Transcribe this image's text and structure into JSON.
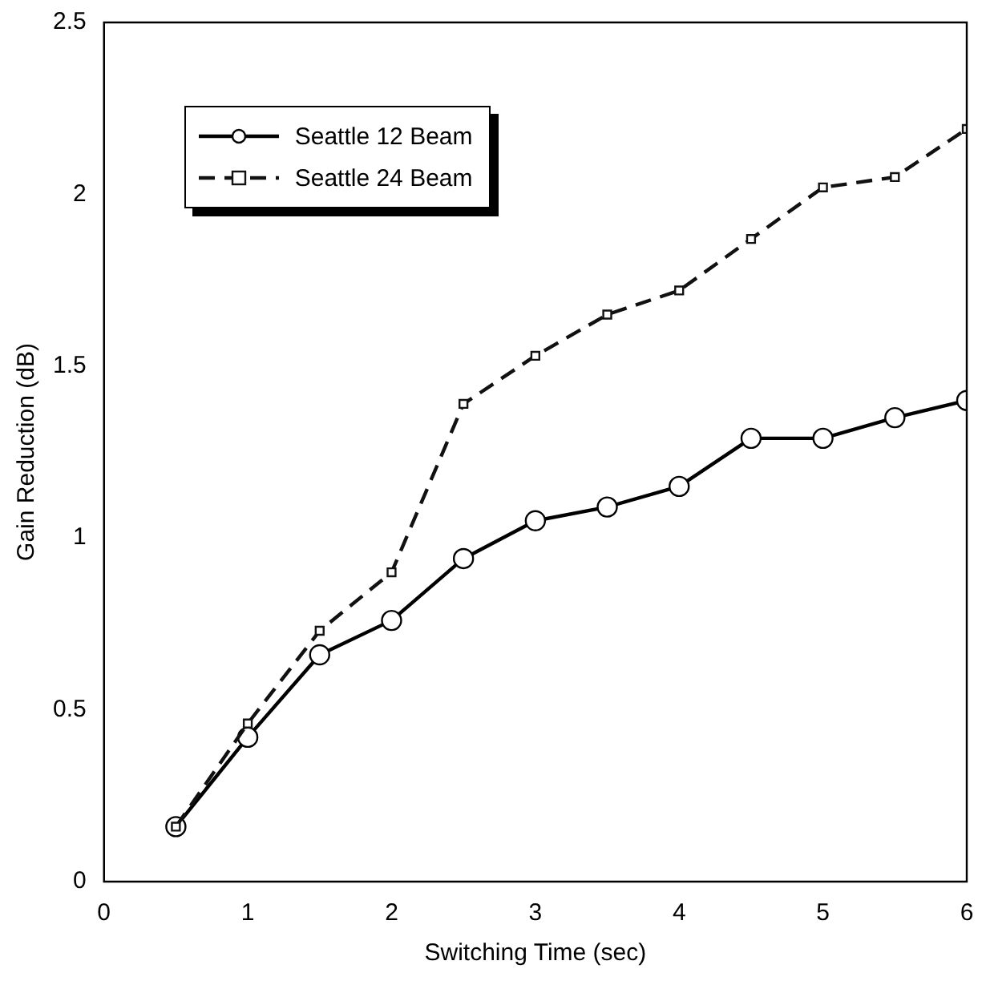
{
  "chart_data": {
    "type": "line",
    "xlabel": "Switching Time (sec)",
    "ylabel": "Gain Reduction (dB)",
    "x": [
      0.5,
      1,
      1.5,
      2,
      2.5,
      3,
      3.5,
      4,
      4.5,
      5,
      5.5,
      6
    ],
    "series": [
      {
        "name": "Seattle 12 Beam",
        "color": "#000000",
        "marker": "circle",
        "line_style": "solid",
        "values": [
          0.16,
          0.42,
          0.66,
          0.76,
          0.94,
          1.05,
          1.09,
          1.15,
          1.29,
          1.29,
          1.35,
          1.4
        ]
      },
      {
        "name": "Seattle 24 Beam",
        "color": "#111111",
        "marker": "square",
        "line_style": "dashed",
        "values": [
          0.16,
          0.46,
          0.73,
          0.9,
          1.39,
          1.53,
          1.65,
          1.72,
          1.87,
          2.02,
          2.05,
          2.19
        ]
      }
    ],
    "xlim": [
      0,
      6
    ],
    "xticks": [
      0,
      1,
      2,
      3,
      4,
      5,
      6
    ],
    "ylim": [
      0,
      2.5
    ],
    "yticks": [
      0,
      0.5,
      1,
      1.5,
      2,
      2.5
    ],
    "grid": false,
    "legend": "top left"
  }
}
